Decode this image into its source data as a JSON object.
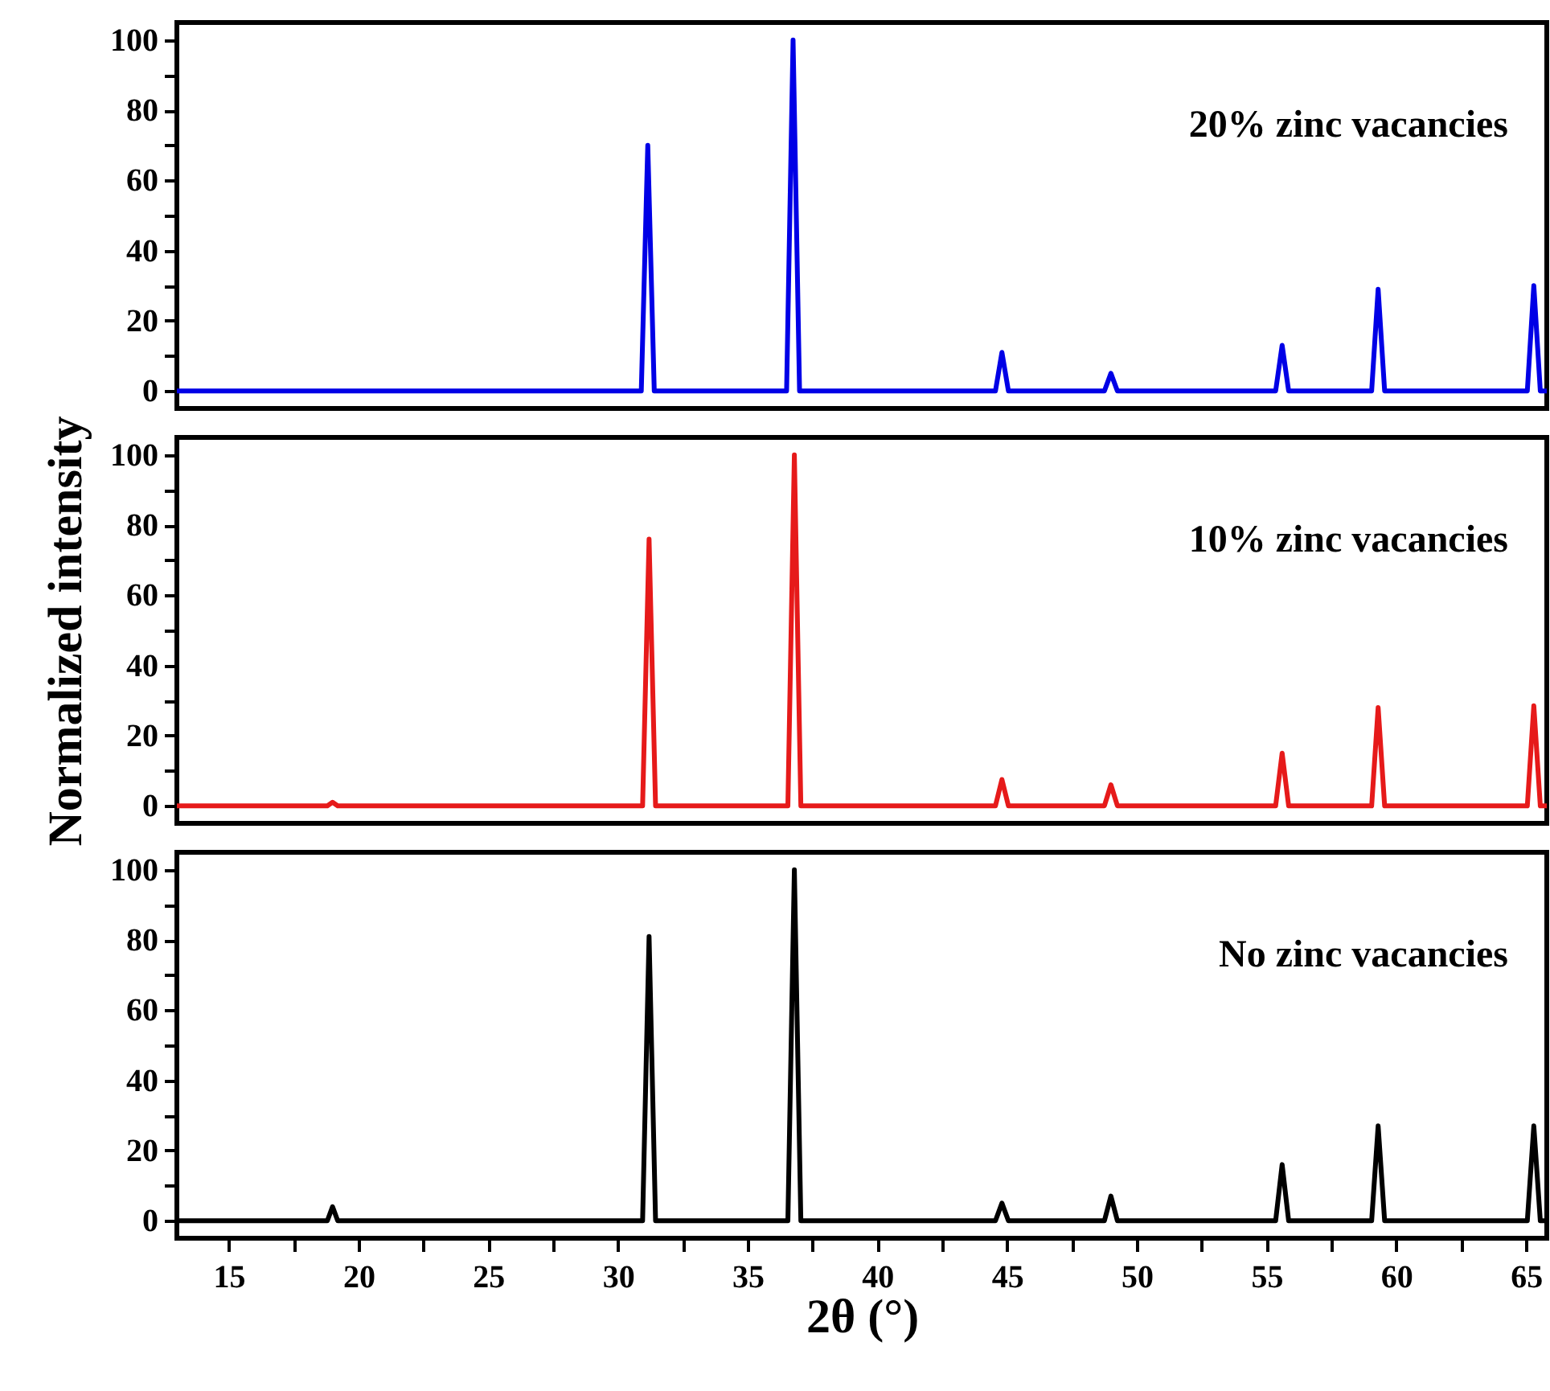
{
  "chart_data": [
    {
      "type": "line",
      "annotations": [
        "20% zinc vacancies"
      ],
      "xlim": [
        13,
        65.8
      ],
      "ylim": [
        -5,
        105
      ],
      "yticks": [
        0,
        {
          "value": 10,
          "label": null
        },
        20,
        {
          "value": 30,
          "label": null
        },
        40,
        {
          "value": 50,
          "label": null
        },
        60,
        {
          "value": 70,
          "label": null
        },
        80,
        {
          "value": 90,
          "label": null
        },
        100
      ],
      "tick_labels": "y",
      "line_style": "solid",
      "marker": "none",
      "series": [
        {
          "color": "#0000e6",
          "x": [
            13,
            30.9,
            31.15,
            31.4,
            36.5,
            36.75,
            37.0,
            44.55,
            44.8,
            45.05,
            48.75,
            49.0,
            49.25,
            55.35,
            55.6,
            55.85,
            59.05,
            59.3,
            59.55,
            65.05,
            65.3,
            65.55,
            65.8
          ],
          "values": [
            0,
            0,
            70,
            0,
            0,
            100,
            0,
            0,
            11,
            0,
            0,
            5,
            0,
            0,
            13,
            0,
            0,
            29,
            0,
            0,
            30,
            0,
            0
          ]
        }
      ]
    },
    {
      "type": "line",
      "annotations": [
        "10% zinc vacancies"
      ],
      "xlim": [
        13,
        65.8
      ],
      "ylim": [
        -5,
        105
      ],
      "ylabel": "Normalized intensity",
      "yticks": [
        0,
        {
          "value": 10,
          "label": null
        },
        20,
        {
          "value": 30,
          "label": null
        },
        40,
        {
          "value": 50,
          "label": null
        },
        60,
        {
          "value": 70,
          "label": null
        },
        80,
        {
          "value": 90,
          "label": null
        },
        100
      ],
      "tick_labels": "y",
      "line_style": "solid",
      "marker": "none",
      "series": [
        {
          "color": "#e61a1a",
          "x": [
            13,
            18.8,
            19.0,
            19.2,
            30.95,
            31.2,
            31.45,
            36.55,
            36.8,
            37.05,
            44.55,
            44.8,
            45.05,
            48.75,
            49.0,
            49.25,
            55.35,
            55.6,
            55.85,
            59.05,
            59.3,
            59.55,
            65.05,
            65.3,
            65.55,
            65.8
          ],
          "values": [
            0,
            0,
            1,
            0,
            0,
            76,
            0,
            0,
            100,
            0,
            0,
            7.5,
            0,
            0,
            6,
            0,
            0,
            15,
            0,
            0,
            28,
            0,
            0,
            28.5,
            0,
            0
          ]
        }
      ]
    },
    {
      "type": "line",
      "annotations": [
        "No zinc vacancies"
      ],
      "xlim": [
        13,
        65.8
      ],
      "ylim": [
        -5,
        105
      ],
      "xlabel": "2θ (°)",
      "xticks": [
        15,
        {
          "value": 17.5,
          "label": null
        },
        20,
        {
          "value": 22.5,
          "label": null
        },
        25,
        {
          "value": 27.5,
          "label": null
        },
        30,
        {
          "value": 32.5,
          "label": null
        },
        35,
        {
          "value": 37.5,
          "label": null
        },
        40,
        {
          "value": 42.5,
          "label": null
        },
        45,
        {
          "value": 47.5,
          "label": null
        },
        50,
        {
          "value": 52.5,
          "label": null
        },
        55,
        {
          "value": 57.5,
          "label": null
        },
        60,
        {
          "value": 62.5,
          "label": null
        },
        65
      ],
      "yticks": [
        0,
        {
          "value": 10,
          "label": null
        },
        20,
        {
          "value": 30,
          "label": null
        },
        40,
        {
          "value": 50,
          "label": null
        },
        60,
        {
          "value": 70,
          "label": null
        },
        80,
        {
          "value": 90,
          "label": null
        },
        100
      ],
      "line_style": "solid",
      "marker": "none",
      "series": [
        {
          "color": "#000000",
          "x": [
            13,
            18.8,
            19.0,
            19.2,
            30.95,
            31.2,
            31.45,
            36.55,
            36.8,
            37.05,
            44.55,
            44.8,
            45.05,
            48.75,
            49.0,
            49.25,
            55.35,
            55.6,
            55.85,
            59.05,
            59.3,
            59.55,
            65.05,
            65.3,
            65.55,
            65.8
          ],
          "values": [
            0,
            0,
            4,
            0,
            0,
            81,
            0,
            0,
            100,
            0,
            0,
            5,
            0,
            0,
            7,
            0,
            0,
            16,
            0,
            0,
            27,
            0,
            0,
            27,
            0,
            0
          ]
        }
      ]
    }
  ]
}
